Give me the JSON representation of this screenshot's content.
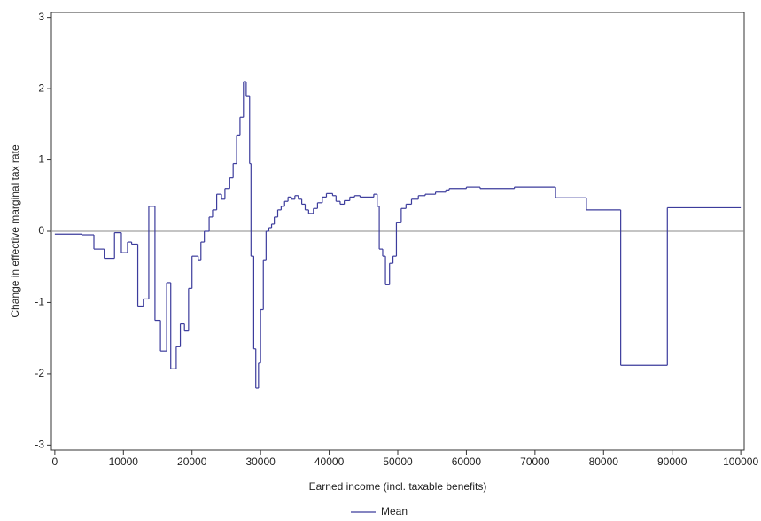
{
  "chart_data": {
    "type": "step",
    "x_label": "Earned income (incl. taxable benefits)",
    "y_label": "Change in effective marginal tax rate",
    "xlim": [
      -500,
      100500
    ],
    "ylim": [
      -3.07,
      3.07
    ],
    "xticks": [
      0,
      10000,
      20000,
      30000,
      40000,
      50000,
      60000,
      70000,
      80000,
      90000,
      100000
    ],
    "yticks": [
      -3,
      -2,
      -1,
      0,
      1,
      2,
      3
    ],
    "reference_line": 0,
    "legend": "bottom",
    "series": [
      {
        "name": "Mean",
        "color": "#3c3c9c",
        "x": [
          0,
          3900,
          5700,
          7200,
          8700,
          9700,
          10600,
          11200,
          12100,
          12900,
          13700,
          14600,
          15400,
          16300,
          16900,
          17700,
          18300,
          18900,
          19500,
          20000,
          20900,
          21300,
          21800,
          22500,
          23000,
          23600,
          24300,
          24800,
          25500,
          26000,
          26500,
          27000,
          27500,
          27900,
          28400,
          28600,
          29000,
          29300,
          29700,
          30000,
          30400,
          30800,
          31200,
          31600,
          32000,
          32500,
          33000,
          33500,
          34000,
          34500,
          35000,
          35500,
          36000,
          36500,
          37000,
          37700,
          38300,
          39000,
          39600,
          40500,
          41000,
          41600,
          42200,
          43000,
          43700,
          44500,
          46500,
          47000,
          47300,
          47800,
          48200,
          48800,
          49300,
          49800,
          50500,
          51200,
          52000,
          53000,
          54000,
          55500,
          57000,
          57500,
          60000,
          62000,
          67000,
          73000,
          77500,
          82500,
          89300,
          100000
        ],
        "values": [
          -0.04,
          -0.05,
          -0.25,
          -0.38,
          -0.02,
          -0.3,
          -0.15,
          -0.18,
          -1.05,
          -0.95,
          0.35,
          -1.25,
          -1.68,
          -0.72,
          -1.93,
          -1.62,
          -1.3,
          -1.4,
          -0.8,
          -0.35,
          -0.4,
          -0.15,
          0,
          0.2,
          0.3,
          0.52,
          0.45,
          0.6,
          0.75,
          0.95,
          1.35,
          1.6,
          2.1,
          1.9,
          0.95,
          -0.35,
          -1.65,
          -2.2,
          -1.85,
          -1.1,
          -0.4,
          0,
          0.05,
          0.1,
          0.2,
          0.3,
          0.35,
          0.42,
          0.48,
          0.45,
          0.5,
          0.45,
          0.38,
          0.3,
          0.25,
          0.32,
          0.4,
          0.48,
          0.53,
          0.5,
          0.42,
          0.38,
          0.43,
          0.48,
          0.5,
          0.48,
          0.52,
          0.35,
          -0.25,
          -0.35,
          -0.75,
          -0.45,
          -0.35,
          0.12,
          0.32,
          0.38,
          0.45,
          0.5,
          0.52,
          0.55,
          0.58,
          0.6,
          0.62,
          0.6,
          0.62,
          0.47,
          0.3,
          -1.88,
          0.33,
          0.33
        ]
      }
    ]
  }
}
